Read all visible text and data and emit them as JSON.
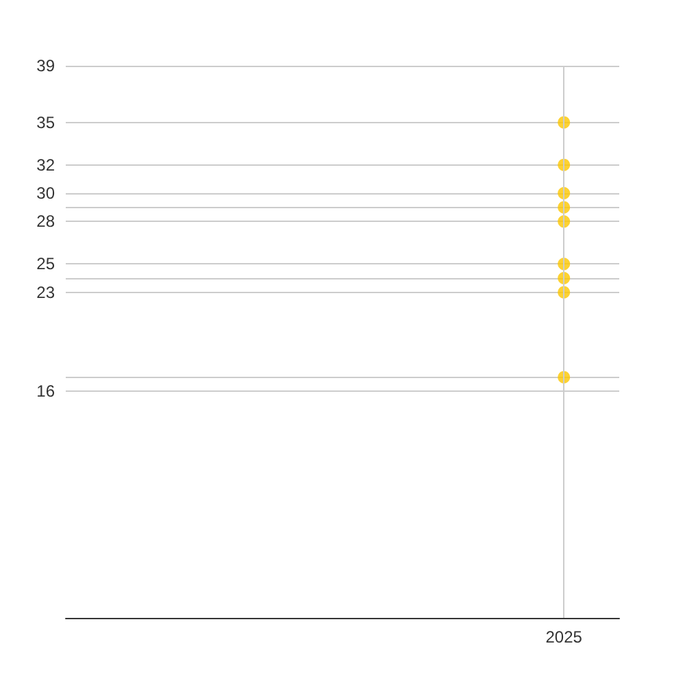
{
  "chart_data": {
    "type": "scatter",
    "categories": [
      null,
      null,
      null,
      null,
      "2025"
    ],
    "series": [
      {
        "color": "#fcc700",
        "values": [
          null,
          null,
          null,
          null,
          35
        ]
      },
      {
        "color": "#fcc700",
        "values": [
          null,
          null,
          null,
          null,
          32
        ]
      },
      {
        "color": "#fcc700",
        "values": [
          null,
          null,
          null,
          null,
          30
        ]
      },
      {
        "color": "#fcc700",
        "values": [
          null,
          null,
          null,
          null,
          29
        ]
      },
      {
        "color": "#fcc700",
        "values": [
          null,
          null,
          null,
          null,
          28
        ]
      },
      {
        "color": "#fcc700",
        "values": [
          null,
          null,
          null,
          null,
          25
        ]
      },
      {
        "color": "#fcc700",
        "values": [
          null,
          null,
          null,
          null,
          24
        ]
      },
      {
        "color": "#fcc700",
        "values": [
          null,
          null,
          null,
          null,
          23
        ]
      },
      {
        "color": "#fcc700",
        "values": [
          null,
          null,
          null,
          null,
          17
        ]
      }
    ],
    "ylim": [
      0,
      39
    ],
    "yticks": [
      16,
      {
        "value": 17,
        "label": null
      },
      23,
      {
        "value": 24,
        "label": null
      },
      25,
      28,
      {
        "value": 29,
        "label": null
      },
      30,
      32,
      35,
      39
    ],
    "grid": true,
    "marker": "circle"
  }
}
